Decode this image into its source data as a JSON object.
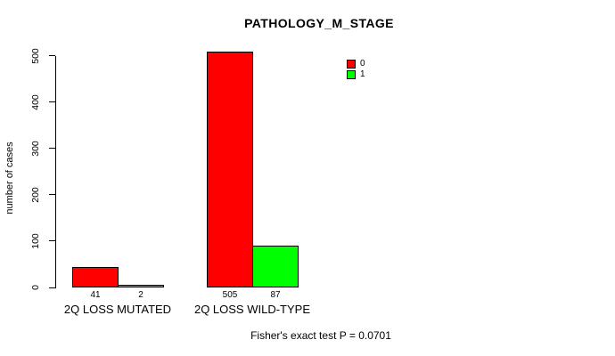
{
  "chart_data": {
    "type": "bar",
    "title": "PATHOLOGY_M_STAGE",
    "xlabel": "",
    "ylabel": "number of cases",
    "categories": [
      "2Q LOSS MUTATED",
      "2Q LOSS WILD-TYPE"
    ],
    "series": [
      {
        "name": "0",
        "color": "#ff0000",
        "values": [
          41,
          505
        ]
      },
      {
        "name": "1",
        "color": "#00ff00",
        "values": [
          2,
          87
        ]
      }
    ],
    "bar_value_labels": [
      [
        41,
        2
      ],
      [
        505,
        87
      ]
    ],
    "ylim": [
      0,
      500
    ],
    "yticks": [
      0,
      100,
      200,
      300,
      400,
      500
    ],
    "grid": false,
    "legend_position": "top-right",
    "bar_border_color": "#000000",
    "background_color": "#ffffff",
    "annotation": "Fisher's exact test P = 0.0701"
  }
}
